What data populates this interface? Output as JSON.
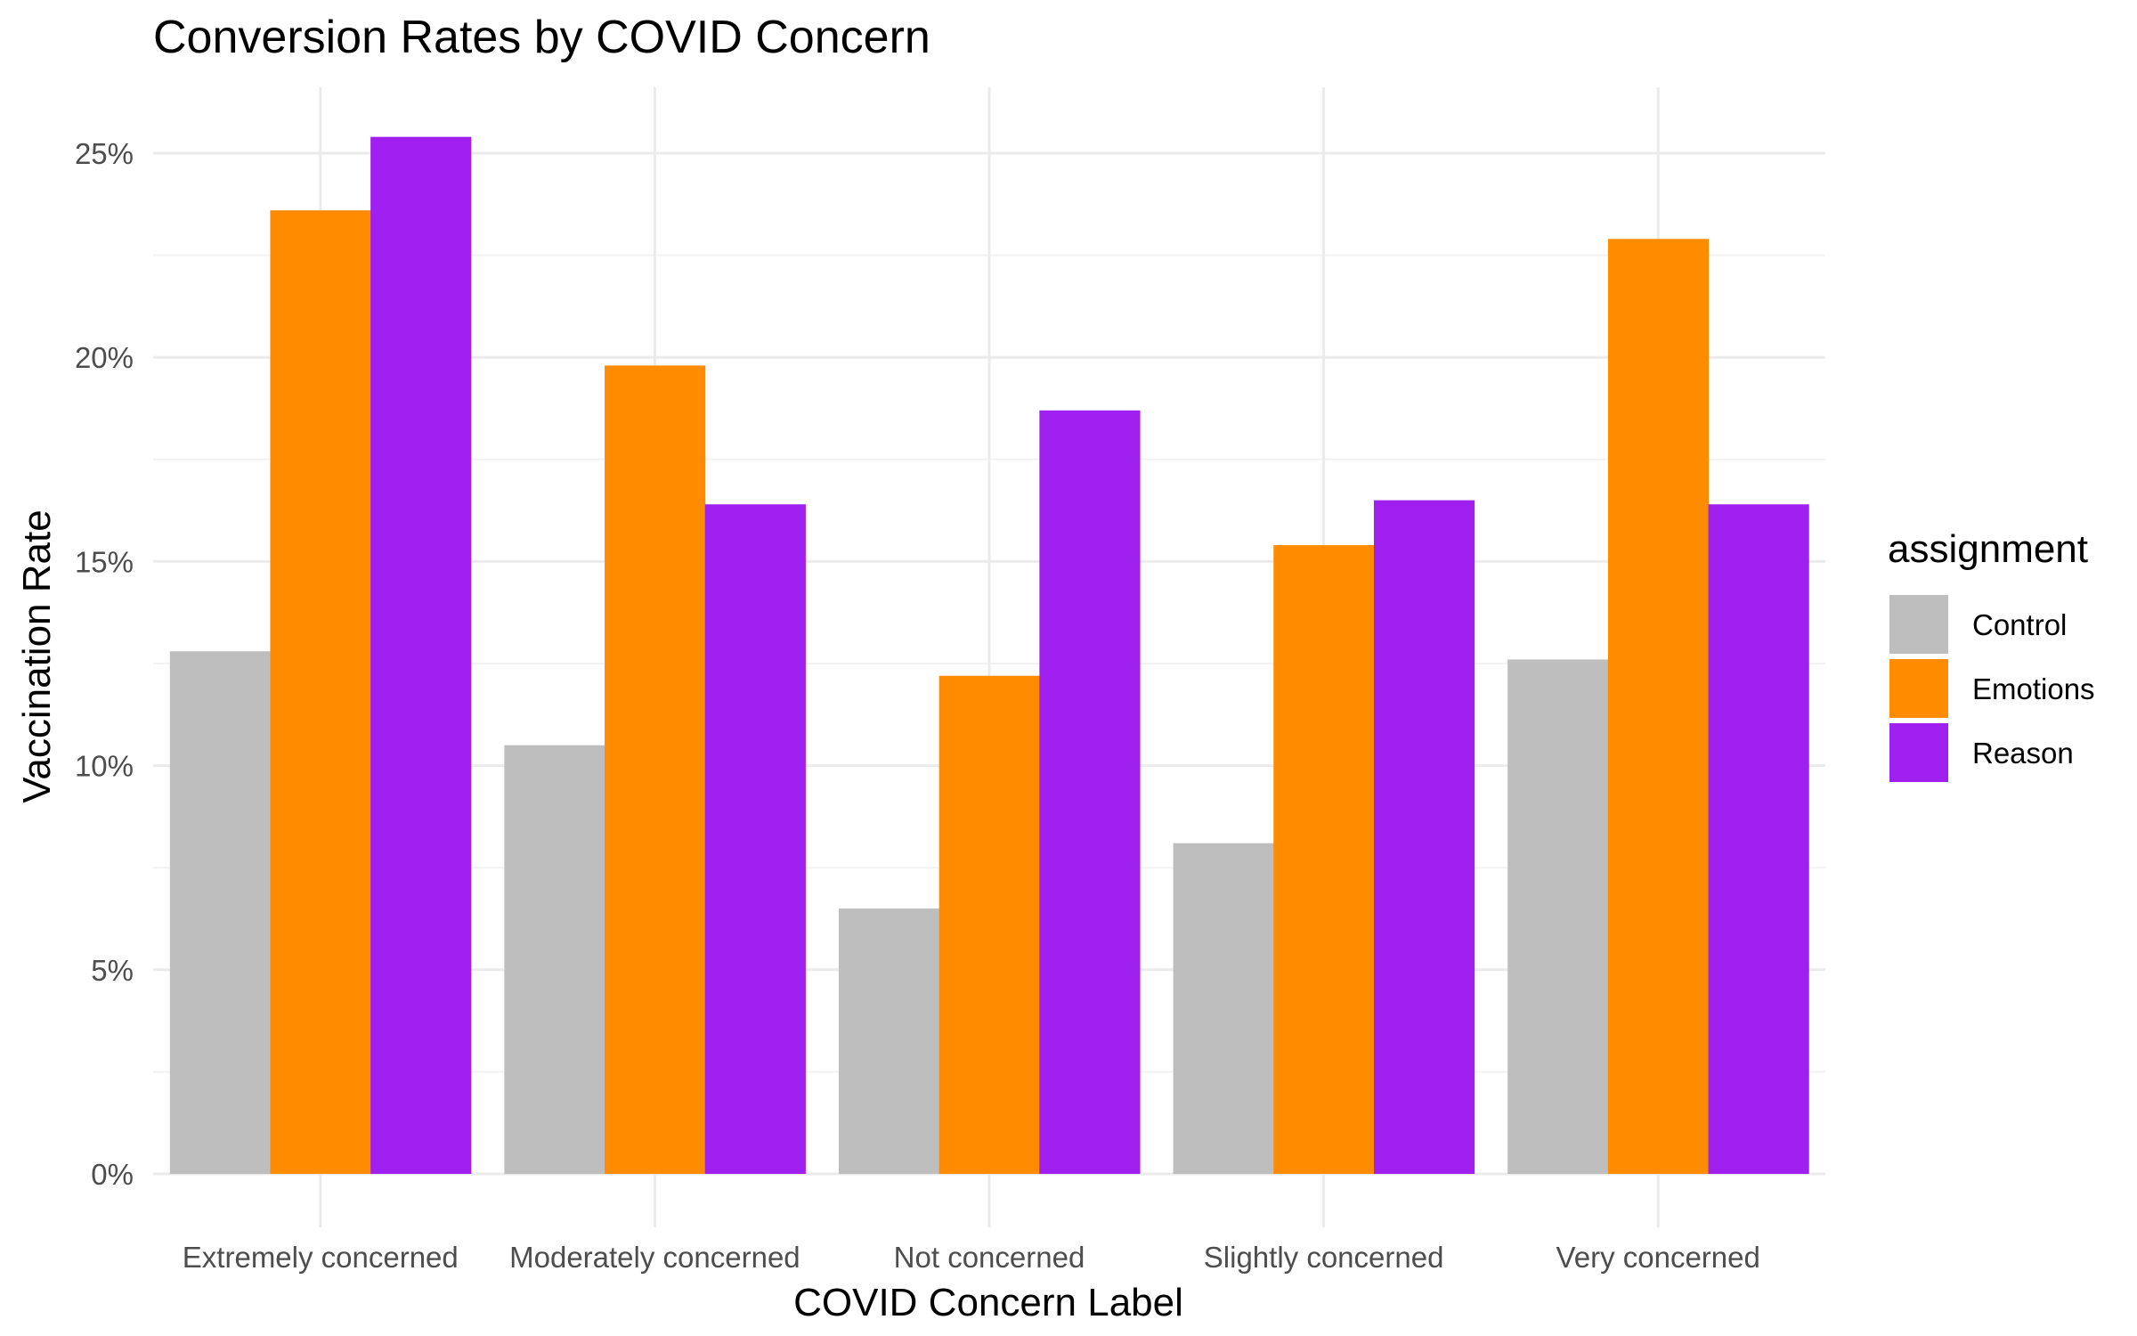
{
  "chart_data": {
    "type": "bar",
    "title": "Conversion Rates by COVID Concern",
    "xlabel": "COVID Concern Label",
    "ylabel": "Vaccination Rate",
    "categories": [
      "Extremely concerned",
      "Moderately concerned",
      "Not concerned",
      "Slightly concerned",
      "Very concerned"
    ],
    "series": [
      {
        "name": "Control",
        "color": "#bebebe",
        "values": [
          12.8,
          10.5,
          6.5,
          8.1,
          12.6
        ]
      },
      {
        "name": "Emotions",
        "color": "#ff8c00",
        "values": [
          23.6,
          19.8,
          12.2,
          15.4,
          22.9
        ]
      },
      {
        "name": "Reason",
        "color": "#a020f0",
        "values": [
          25.4,
          16.4,
          18.7,
          16.5,
          16.4
        ]
      }
    ],
    "ylim": [
      0,
      26.5
    ],
    "yticks": [
      0,
      5,
      10,
      15,
      20,
      25
    ],
    "ytick_labels": [
      "0%",
      "5%",
      "10%",
      "15%",
      "20%",
      "25%"
    ],
    "grid": true,
    "legend": {
      "title": "assignment",
      "position": "right"
    }
  }
}
